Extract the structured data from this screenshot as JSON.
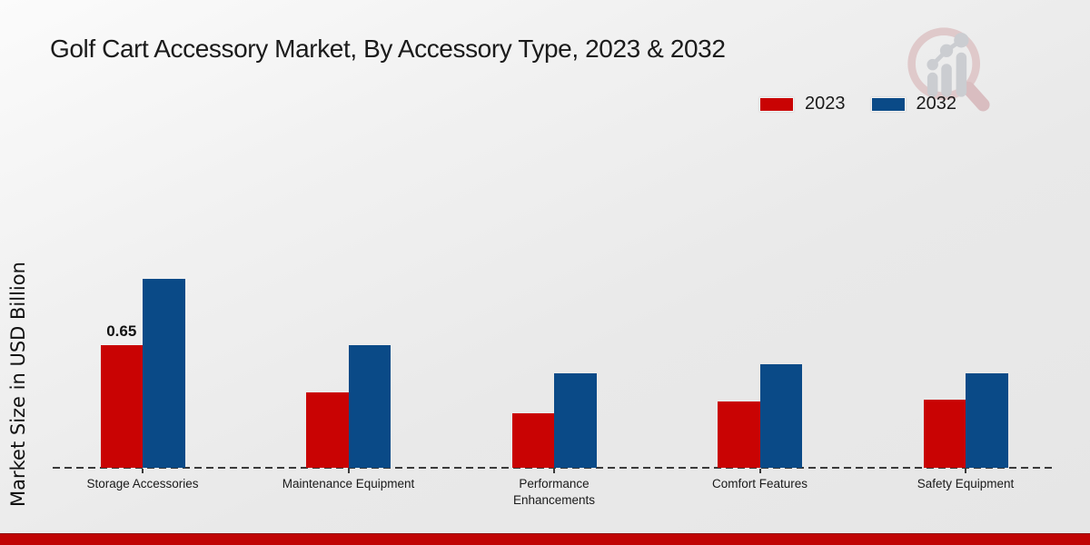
{
  "title": "Golf Cart Accessory Market, By Accessory Type, 2023 & 2032",
  "y_axis_label": "Market Size in USD Billion",
  "legend": {
    "items": [
      {
        "label": "2023",
        "color": "#c90303"
      },
      {
        "label": "2032",
        "color": "#0a4a87"
      }
    ]
  },
  "watermark": "market-research-magnifier-logo",
  "accent": {
    "bottom_strip": "#c00404"
  },
  "chart_data": {
    "type": "bar",
    "title": "Golf Cart Accessory Market, By Accessory Type, 2023 & 2032",
    "xlabel": "",
    "ylabel": "Market Size in USD Billion",
    "categories": [
      "Storage Accessories",
      "Maintenance Equipment",
      "Performance Enhancements",
      "Comfort Features",
      "Safety Equipment"
    ],
    "series": [
      {
        "name": "2023",
        "color": "#c90303",
        "values": [
          0.65,
          0.4,
          0.29,
          0.35,
          0.36
        ],
        "data_labels": [
          "0.65",
          null,
          null,
          null,
          null
        ]
      },
      {
        "name": "2032",
        "color": "#0a4a87",
        "values": [
          1.0,
          0.65,
          0.5,
          0.55,
          0.5
        ],
        "data_labels": [
          null,
          null,
          null,
          null,
          null
        ]
      }
    ],
    "ylim": [
      0,
      1.25
    ],
    "grid": false,
    "baseline_style": "dashed",
    "legend_position": "top-right",
    "y_axis_ticks_visible": false
  }
}
